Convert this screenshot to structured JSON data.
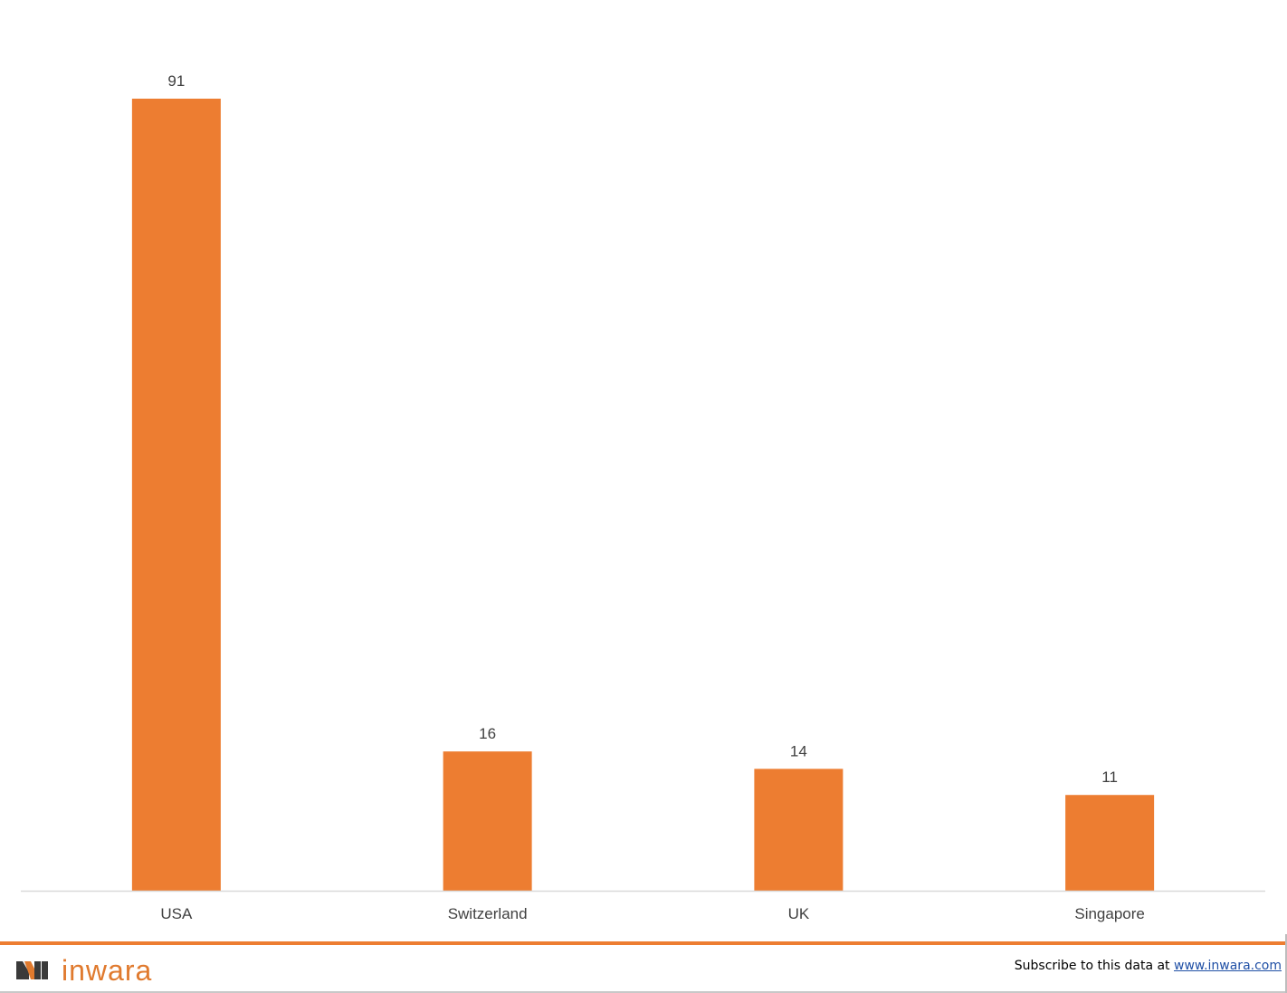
{
  "chart_data": {
    "type": "bar",
    "categories": [
      "USA",
      "Switzerland",
      "UK",
      "Singapore"
    ],
    "values": [
      91,
      16,
      14,
      11
    ],
    "title": "",
    "xlabel": "",
    "ylabel": "",
    "ylim": [
      0,
      91
    ],
    "grid": false,
    "legend": "none",
    "bar_color": "#ED7D31",
    "axis_color": "#D9D9D9"
  },
  "footer": {
    "brand": "inwara",
    "subscribe_text": "Subscribe to this data at",
    "subscribe_link": "www.inwara.com",
    "accent_color": "#ED7D31",
    "logo_icon": "inwara-logo-icon"
  }
}
